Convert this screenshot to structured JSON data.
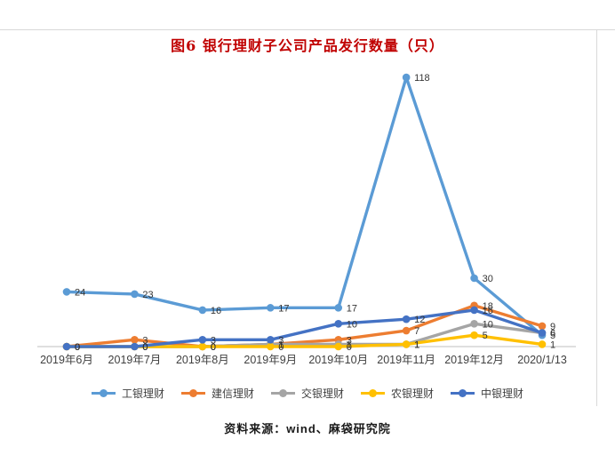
{
  "title": {
    "text": "图6 银行理财子公司产品发行数量（只）",
    "color": "#C00000"
  },
  "footer": {
    "text": "资料来源：wind、麻袋研究院"
  },
  "chart_data": {
    "type": "line",
    "title": "图6 银行理财子公司产品发行数量（只）",
    "categories": [
      "2019年6月",
      "2019年7月",
      "2019年8月",
      "2019年9月",
      "2019年10月",
      "2019年11月",
      "2019年12月",
      "2020/1/13"
    ],
    "series": [
      {
        "name": "工银理财",
        "color": "#5B9BD5",
        "values": [
          24,
          23,
          16,
          17,
          17,
          118,
          30,
          5
        ]
      },
      {
        "name": "建信理财",
        "color": "#ED7D31",
        "values": [
          0,
          3,
          0,
          1,
          3,
          7,
          18,
          9
        ]
      },
      {
        "name": "交银理财",
        "color": "#A5A5A5",
        "values": [
          0,
          0,
          0,
          1,
          1,
          1,
          10,
          6
        ]
      },
      {
        "name": "农银理财",
        "color": "#FFC000",
        "values": [
          0,
          0,
          0,
          0,
          0,
          1,
          5,
          1
        ]
      },
      {
        "name": "中银理财",
        "color": "#4472C4",
        "values": [
          0,
          0,
          3,
          3,
          10,
          12,
          16,
          6
        ]
      }
    ],
    "ylim": [
      0,
      130
    ],
    "xlabel": "",
    "ylabel": "",
    "grid": false,
    "y_axis_labels_visible": false,
    "data_labels_position": "right",
    "legend_position": "bottom",
    "axis_line_color": "#BFBFBF",
    "frame_line_color": "#D9D9D9",
    "data_label_color": "#333333",
    "axis_label_color": "#404040"
  }
}
